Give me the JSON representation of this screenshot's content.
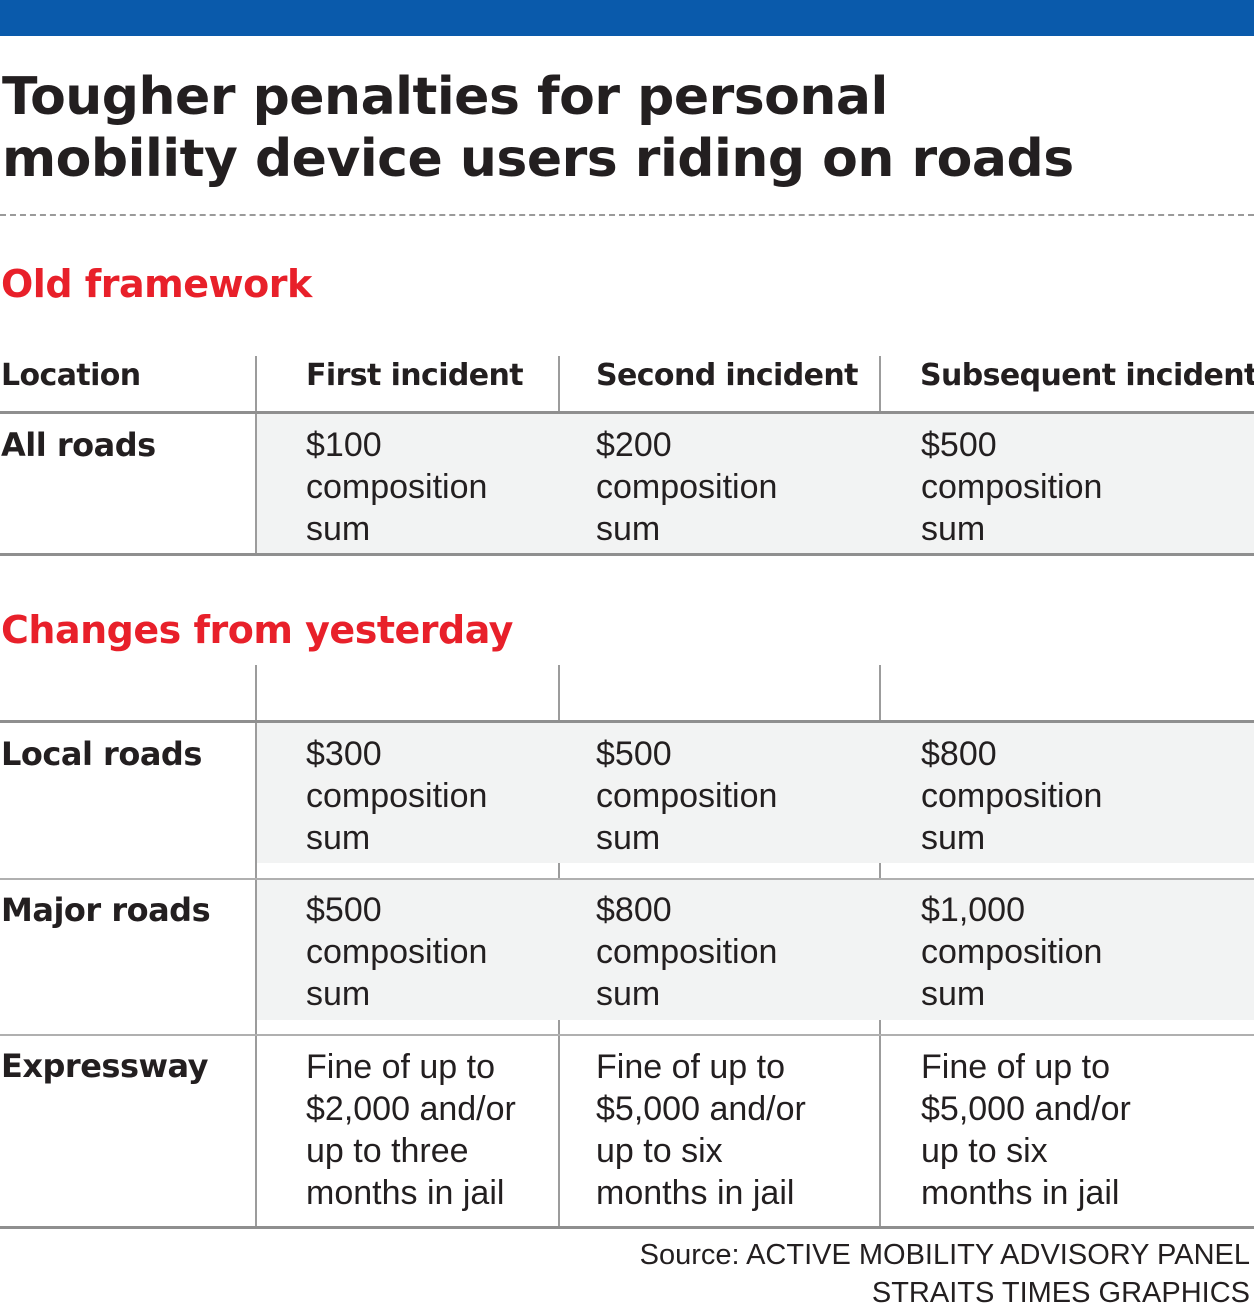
{
  "headline": {
    "line1": "Tougher penalties for personal",
    "line2": "mobility device users riding on roads"
  },
  "sections": {
    "old_title": "Old framework",
    "new_title": "Changes from yesterday"
  },
  "columns": {
    "location": "Location",
    "first": "First incident",
    "second": "Second incident",
    "subsequent": "Subsequent incidents"
  },
  "old_rows": [
    {
      "label": "All roads",
      "first": [
        "$100",
        "composition",
        "sum"
      ],
      "second": [
        "$200",
        "composition",
        "sum"
      ],
      "subsequent": [
        "$500",
        "composition",
        "sum"
      ]
    }
  ],
  "new_rows": [
    {
      "label": "Local roads",
      "first": [
        "$300",
        "composition",
        "sum"
      ],
      "second": [
        "$500",
        "composition",
        "sum"
      ],
      "subsequent": [
        "$800",
        "composition",
        "sum"
      ]
    },
    {
      "label": "Major roads",
      "first": [
        "$500",
        "composition",
        "sum"
      ],
      "second": [
        "$800",
        "composition",
        "sum"
      ],
      "subsequent": [
        "$1,000",
        "composition",
        "sum"
      ]
    },
    {
      "label": "Expressway",
      "first": [
        "Fine of up to",
        "$2,000 and/or",
        "up to three",
        "months in jail"
      ],
      "second": [
        "Fine of up to",
        "$5,000 and/or",
        "up to six",
        "months in jail"
      ],
      "subsequent": [
        "Fine of up to",
        "$5,000 and/or",
        "up to six",
        "months in jail"
      ]
    }
  ],
  "footer": {
    "source": "Source: ACTIVE MOBILITY ADVISORY PANEL",
    "credit": "STRAITS TIMES GRAPHICS"
  },
  "colors": {
    "top_bar": "#0a5aab",
    "section_title": "#e8202a",
    "row_shade": "#f2f3f3"
  }
}
